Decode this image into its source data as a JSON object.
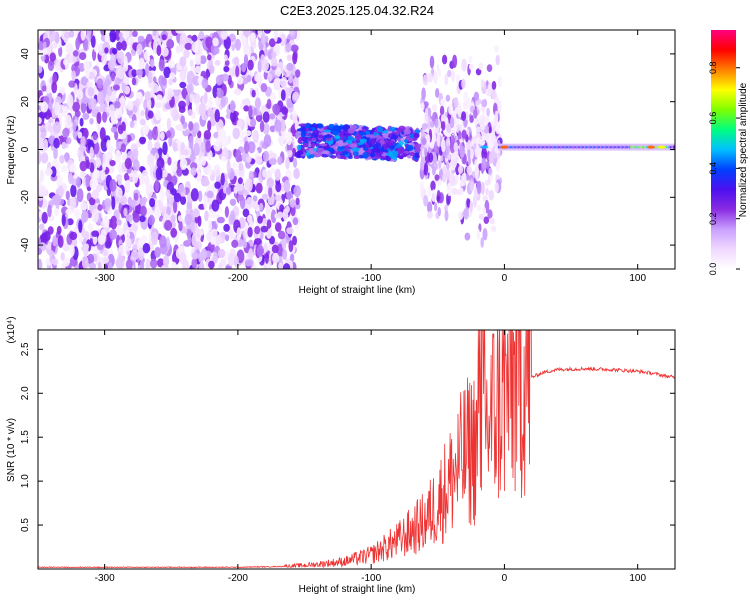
{
  "title": "C2E3.2025.125.04.32.R24",
  "colors": {
    "snr_line": "#ee3333",
    "noise_purple": "#7a1ee6",
    "band_cyan": "#33dddd",
    "band_red": "#ff2222",
    "colormap": [
      "#ffffff",
      "#f0d8ff",
      "#c9a0ff",
      "#8a2be2",
      "#4b0ff0",
      "#0040ff",
      "#00c0ff",
      "#00ff80",
      "#80ff00",
      "#ffff00",
      "#ff8000",
      "#ff0000",
      "#ff0080"
    ]
  },
  "chart_data": [
    {
      "type": "heatmap",
      "title": "C2E3.2025.125.04.32.R24",
      "xlabel": "Height of straight line (km)",
      "ylabel": "Frequency (Hz)",
      "xlim": [
        -350,
        128
      ],
      "ylim": [
        -50,
        50
      ],
      "xticks": [
        -300,
        -200,
        -100,
        0,
        100
      ],
      "xtick_labels": [
        "-300",
        "-200",
        "-100",
        "0",
        "100"
      ],
      "yticks": [
        -40,
        -20,
        0,
        20,
        40
      ],
      "ytick_labels": [
        "-40",
        "-20",
        "0",
        "20",
        "40"
      ],
      "colorbar": {
        "label": "Normalized spectral amplitude",
        "range": [
          0,
          0.95
        ],
        "ticks": [
          0.0,
          0.2,
          0.4,
          0.6,
          0.8
        ],
        "tick_labels": [
          "0.0",
          "0.2",
          "0.4",
          "0.6",
          "0.8"
        ]
      },
      "regions": [
        {
          "x": [
            -350,
            -155
          ],
          "freq": [
            -50,
            50
          ],
          "amplitude": 0.08
        },
        {
          "x": [
            -155,
            -65
          ],
          "freq": [
            -3,
            10
          ],
          "amplitude": 0.25
        },
        {
          "x": [
            -62,
            -3
          ],
          "freq": [
            -45,
            40
          ],
          "amplitude": 0.1
        },
        {
          "x": [
            -3,
            128
          ],
          "freq": [
            -2,
            4
          ],
          "amplitude": 0.3
        }
      ]
    },
    {
      "type": "line",
      "xlabel": "Height of straight line (km)",
      "ylabel": "SNR (10 * v/v)",
      "yscale_label": "(x10⁴)",
      "xlim": [
        -350,
        128
      ],
      "ylim": [
        0,
        2.72
      ],
      "xticks": [
        -300,
        -200,
        -100,
        0,
        100
      ],
      "xtick_labels": [
        "-300",
        "-200",
        "-100",
        "0",
        "100"
      ],
      "yticks": [
        0.5,
        1.0,
        1.5,
        2.0,
        2.5
      ],
      "ytick_labels": [
        "0.5",
        "1.0",
        "1.5",
        "2.0",
        "2.5"
      ],
      "series": [
        {
          "x": [
            -350,
            -200,
            -160,
            -140,
            -120,
            -100,
            -80,
            -60,
            -50,
            -40,
            -30,
            -20,
            -15,
            -10,
            -5,
            0,
            5,
            10,
            20,
            30,
            40,
            60,
            80,
            100,
            110,
            120,
            128
          ],
          "y": [
            0.02,
            0.02,
            0.03,
            0.05,
            0.08,
            0.15,
            0.3,
            0.5,
            0.7,
            0.95,
            1.2,
            1.35,
            1.5,
            1.6,
            1.75,
            1.85,
            1.95,
            2.05,
            2.18,
            2.24,
            2.27,
            2.28,
            2.27,
            2.25,
            2.23,
            2.2,
            2.18
          ]
        }
      ]
    }
  ]
}
